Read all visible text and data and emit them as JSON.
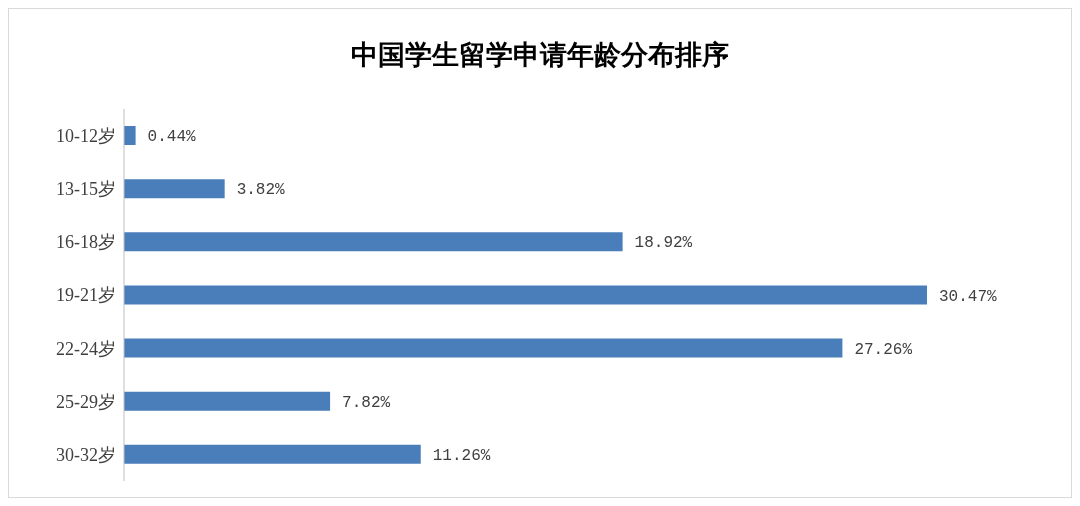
{
  "chart_data": {
    "type": "bar",
    "title": "中国学生留学申请年龄分布排序",
    "orientation": "horizontal",
    "categories": [
      "10-12岁",
      "13-15岁",
      "16-18岁",
      "19-21岁",
      "22-24岁",
      "25-29岁",
      "30-32岁"
    ],
    "values": [
      0.44,
      3.82,
      18.92,
      30.47,
      27.26,
      7.82,
      11.26
    ],
    "value_labels": [
      "0.44%",
      "3.82%",
      "18.92%",
      "30.47%",
      "27.26%",
      "7.82%",
      "11.26%"
    ],
    "color": "#4a7ebb",
    "grid": false,
    "legend": false
  }
}
